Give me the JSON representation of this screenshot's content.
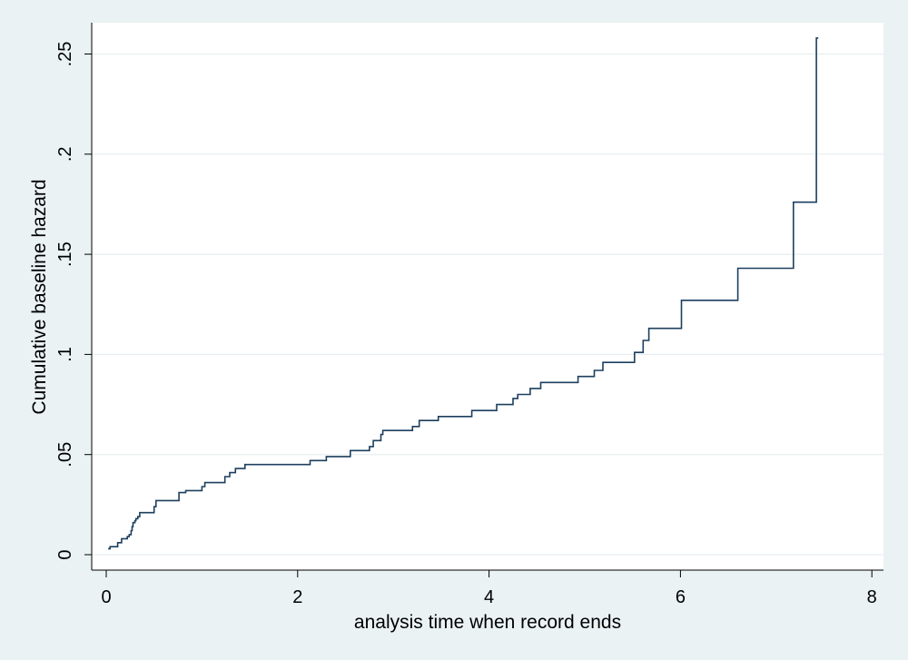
{
  "chart_data": {
    "type": "line",
    "step": true,
    "title": "",
    "xlabel": "analysis time when record ends",
    "ylabel": "Cumulative baseline hazard",
    "xlim": [
      0,
      8
    ],
    "ylim": [
      0,
      0.25
    ],
    "x_ticks": [
      {
        "value": 0,
        "label": "0"
      },
      {
        "value": 2,
        "label": "2"
      },
      {
        "value": 4,
        "label": "4"
      },
      {
        "value": 6,
        "label": "6"
      },
      {
        "value": 8,
        "label": "8"
      }
    ],
    "y_ticks": [
      {
        "value": 0,
        "label": "0"
      },
      {
        "value": 0.05,
        "label": ".05"
      },
      {
        "value": 0.1,
        "label": ".1"
      },
      {
        "value": 0.15,
        "label": ".15"
      },
      {
        "value": 0.2,
        "label": ".2"
      },
      {
        "value": 0.25,
        "label": ".25"
      }
    ],
    "grid": true,
    "colors": {
      "background": "#eaf2f3",
      "plot_area": "#ffffff",
      "line": "#1c3f5e",
      "grid": "#e6eef0"
    },
    "series": [
      {
        "x": [
          0.02,
          0.04,
          0.12,
          0.16,
          0.22,
          0.24,
          0.26,
          0.27,
          0.28,
          0.3,
          0.31,
          0.33,
          0.35,
          0.37,
          0.5,
          0.52,
          0.76,
          0.83,
          1.0,
          1.03,
          1.24,
          1.29,
          1.35,
          1.45,
          2.13,
          2.3,
          2.55,
          2.75,
          2.79,
          2.85,
          2.87,
          2.89,
          3.2,
          3.27,
          3.47,
          3.82,
          4.08,
          4.25,
          4.3,
          4.43,
          4.54,
          4.93,
          5.1,
          5.19,
          5.49,
          5.52,
          5.61,
          5.65,
          5.67,
          6.01,
          6.6,
          7.18,
          7.42
        ],
        "y": [
          0.003,
          0.004,
          0.006,
          0.008,
          0.009,
          0.01,
          0.012,
          0.014,
          0.016,
          0.017,
          0.018,
          0.019,
          0.021,
          0.021,
          0.024,
          0.027,
          0.031,
          0.032,
          0.034,
          0.036,
          0.039,
          0.041,
          0.043,
          0.045,
          0.047,
          0.049,
          0.052,
          0.054,
          0.057,
          0.057,
          0.06,
          0.062,
          0.064,
          0.067,
          0.069,
          0.072,
          0.075,
          0.078,
          0.08,
          0.083,
          0.086,
          0.089,
          0.092,
          0.096,
          0.096,
          0.101,
          0.107,
          0.107,
          0.113,
          0.127,
          0.143,
          0.176,
          0.258
        ],
        "end_x": 7.44
      }
    ]
  }
}
